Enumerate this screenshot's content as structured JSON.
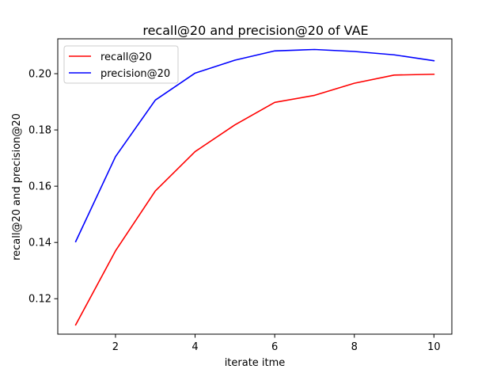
{
  "chart_data": {
    "type": "line",
    "title": "recall@20 and precision@20 of VAE",
    "xlabel": "iterate itme",
    "ylabel": "recall@20 and precision@20",
    "x": [
      1,
      2,
      3,
      4,
      5,
      6,
      7,
      8,
      9,
      10
    ],
    "xlim": [
      0.55,
      10.45
    ],
    "ylim": [
      0.1074,
      0.2124
    ],
    "xticks": [
      2,
      4,
      6,
      8,
      10
    ],
    "yticks": [
      0.12,
      0.14,
      0.16,
      0.18,
      0.2
    ],
    "ytick_labels": [
      "0.12",
      "0.14",
      "0.16",
      "0.18",
      "0.20"
    ],
    "grid": false,
    "legend_position": "top-left",
    "series": [
      {
        "name": "recall@20",
        "color": "#ff0000",
        "values": [
          0.1107,
          0.137,
          0.1583,
          0.1723,
          0.1818,
          0.1898,
          0.1923,
          0.1966,
          0.1995,
          0.1998
        ]
      },
      {
        "name": "precision@20",
        "color": "#0000ff",
        "values": [
          0.1403,
          0.1705,
          0.1906,
          0.2002,
          0.2048,
          0.2081,
          0.2086,
          0.2079,
          0.2067,
          0.2046
        ]
      }
    ]
  }
}
